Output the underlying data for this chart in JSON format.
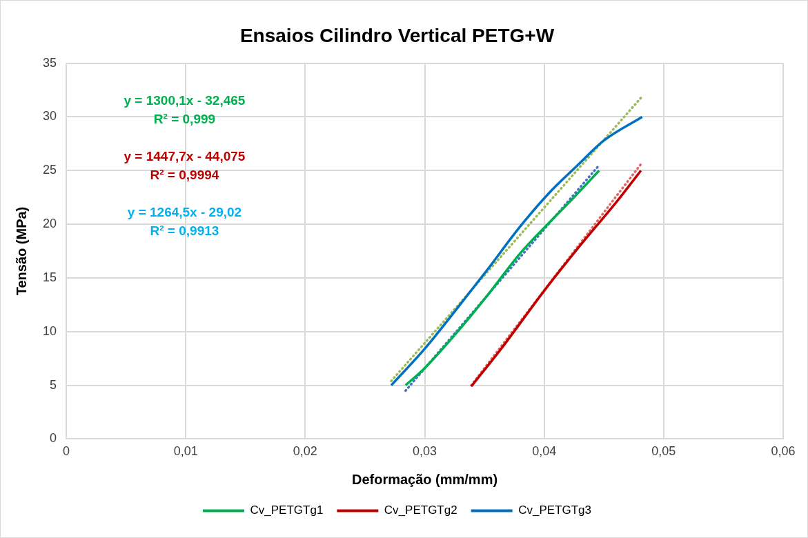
{
  "chart_data": {
    "type": "line",
    "title": "Ensaios Cilindro Vertical PETG+W",
    "xlabel": "Deformação (mm/mm)",
    "ylabel": "Tensão (MPa)",
    "xlim": [
      0,
      0.06
    ],
    "xticks": [
      {
        "value": 0,
        "label": "0"
      },
      {
        "value": 0.01,
        "label": "0,01"
      },
      {
        "value": 0.02,
        "label": "0,02"
      },
      {
        "value": 0.03,
        "label": "0,03"
      },
      {
        "value": 0.04,
        "label": "0,04"
      },
      {
        "value": 0.05,
        "label": "0,05"
      },
      {
        "value": 0.06,
        "label": "0,06"
      }
    ],
    "ylim": [
      0,
      35
    ],
    "yticks": [
      0,
      5,
      10,
      15,
      20,
      25,
      30,
      35
    ],
    "grid": true,
    "legend": "bottom",
    "marker": "none",
    "series": [
      {
        "name": "Cv_PETGTg1",
        "color": "#00b050",
        "x": [
          0.0284,
          0.03,
          0.0326,
          0.0352,
          0.038,
          0.0402,
          0.0424,
          0.0446
        ],
        "values": [
          5,
          6.6,
          9.8,
          13.3,
          17.3,
          19.9,
          22.4,
          25
        ]
      },
      {
        "name": "Cv_PETGTg2",
        "color": "#c00000",
        "x": [
          0.0339,
          0.0364,
          0.04,
          0.043,
          0.046,
          0.0481
        ],
        "values": [
          4.9,
          8.4,
          13.8,
          18,
          22,
          25
        ]
      },
      {
        "name": "Cv_PETGTg3",
        "color": "#0070c0",
        "x": [
          0.0272,
          0.03,
          0.0326,
          0.0352,
          0.038,
          0.0404,
          0.0428,
          0.045,
          0.0482
        ],
        "values": [
          5,
          8.4,
          12,
          15.7,
          19.8,
          22.9,
          25.5,
          27.8,
          30
        ]
      },
      {
        "type": "line",
        "line_style": "dotted",
        "color": "#4472c4",
        "x": [
          0.0284,
          0.0446
        ],
        "values": [
          4.5,
          25.5
        ]
      },
      {
        "type": "line",
        "line_style": "dotted",
        "color": "#e06666",
        "x": [
          0.0339,
          0.0481
        ],
        "values": [
          5,
          25.6
        ]
      },
      {
        "type": "line",
        "line_style": "dotted",
        "color": "#9bbb59",
        "x": [
          0.0272,
          0.0482
        ],
        "values": [
          5.4,
          31.9
        ]
      }
    ],
    "annotations": [
      "y = 1300,1x - 32,465\nR² = 0,999",
      "y = 1447,7x - 44,075\nR² = 0,9994",
      "y = 1264,5x - 29,02\nR² = 0,9913"
    ]
  }
}
